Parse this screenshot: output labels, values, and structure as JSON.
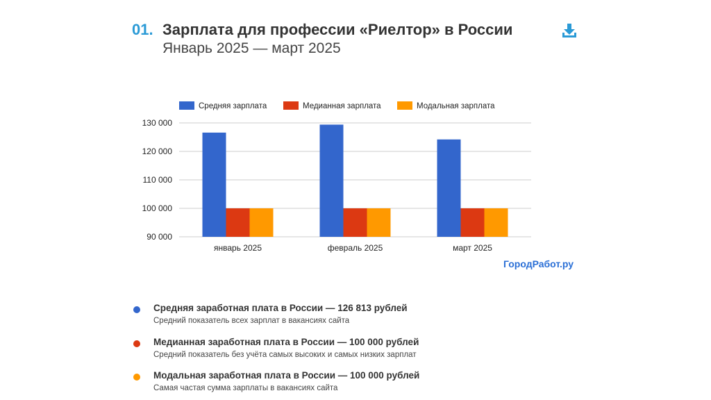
{
  "header": {
    "number": "01.",
    "title": "Зарплата для профессии «Риелтор» в России",
    "subtitle": "Январь 2025 — март 2025"
  },
  "download_icon": "download-icon",
  "brand": {
    "text": "ГородРабот.ру"
  },
  "colors": {
    "mean": "#3366cc",
    "median": "#dc3912",
    "mode": "#ff9900",
    "accent": "#2a9ad6"
  },
  "chart_data": {
    "type": "bar",
    "categories": [
      "январь 2025",
      "февраль 2025",
      "март 2025"
    ],
    "series": [
      {
        "name": "Средняя зарплата",
        "color": "#3366cc",
        "values": [
          126600,
          129400,
          124200
        ]
      },
      {
        "name": "Медианная зарплата",
        "color": "#dc3912",
        "values": [
          100000,
          100000,
          100000
        ]
      },
      {
        "name": "Модальная зарплата",
        "color": "#ff9900",
        "values": [
          100000,
          100000,
          100000
        ]
      }
    ],
    "yticks": [
      90000,
      100000,
      110000,
      120000,
      130000
    ],
    "ytick_labels": [
      "90 000",
      "100 000",
      "110 000",
      "120 000",
      "130 000"
    ],
    "ylim": [
      90000,
      130000
    ],
    "legend_position": "top",
    "grid": true
  },
  "summary": [
    {
      "title": "Средняя заработная плата в России — 126 813 рублей",
      "desc": "Средний показатель всех зарплат в вакансиях сайта",
      "color": "#3366cc"
    },
    {
      "title": "Медианная заработная плата в России — 100 000 рублей",
      "desc": "Средний показатель без учёта самых высоких и самых низких зарплат",
      "color": "#dc3912"
    },
    {
      "title": "Модальная заработная плата в России — 100 000 рублей",
      "desc": "Самая частая сумма зарплаты в вакансиях сайта",
      "color": "#ff9900"
    }
  ]
}
